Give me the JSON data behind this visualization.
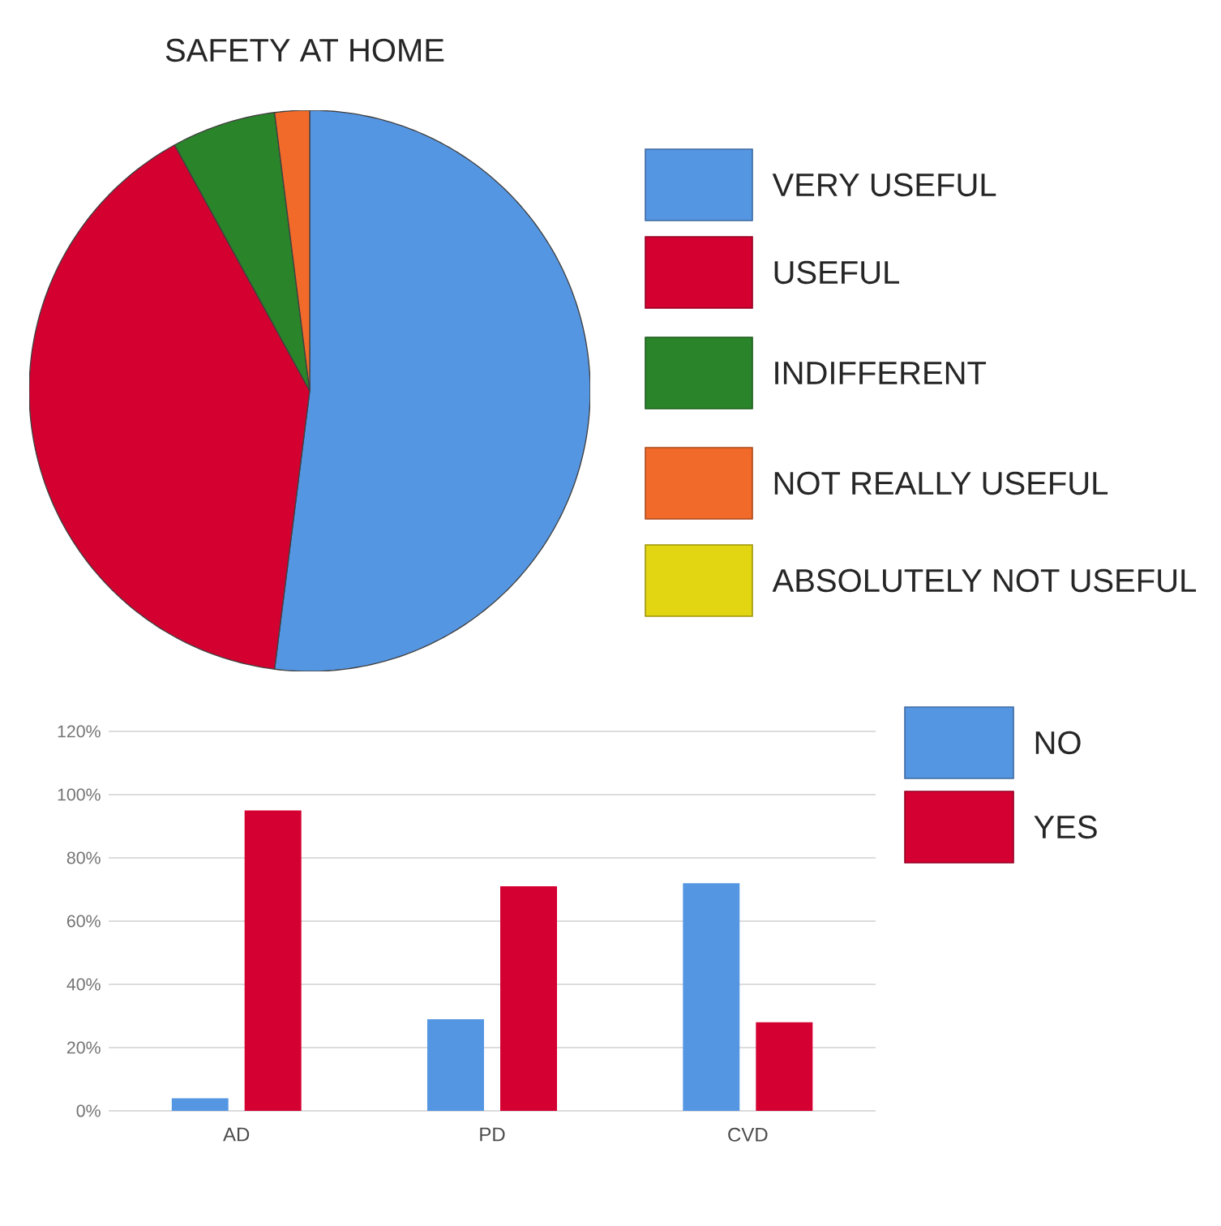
{
  "chart_data": [
    {
      "type": "pie",
      "title": "SAFETY AT HOME",
      "categories": [
        "VERY USEFUL",
        "USEFUL",
        "INDIFFERENT",
        "NOT REALLY USEFUL",
        "ABSOLUTELY NOT USEFUL"
      ],
      "values": [
        52,
        40,
        6,
        2,
        0
      ],
      "colors": [
        "#5596e3",
        "#d30030",
        "#2a842a",
        "#f26a2a",
        "#e2d512"
      ],
      "legend": "right"
    },
    {
      "type": "bar",
      "categories": [
        "AD",
        "PD",
        "CVD"
      ],
      "series": [
        {
          "name": "NO",
          "color": "#5596e3",
          "values": [
            4,
            29,
            72
          ]
        },
        {
          "name": "YES",
          "color": "#d50032",
          "values": [
            95,
            71,
            28
          ]
        }
      ],
      "ylim": [
        0,
        120
      ],
      "yticks": [
        {
          "value": 0,
          "label": "0%"
        },
        {
          "value": 20,
          "label": "20%"
        },
        {
          "value": 40,
          "label": "40%"
        },
        {
          "value": 60,
          "label": "60%"
        },
        {
          "value": 80,
          "label": "80%"
        },
        {
          "value": 100,
          "label": "100%"
        },
        {
          "value": 120,
          "label": "120%"
        }
      ],
      "grid": "y",
      "legend": "right"
    }
  ]
}
